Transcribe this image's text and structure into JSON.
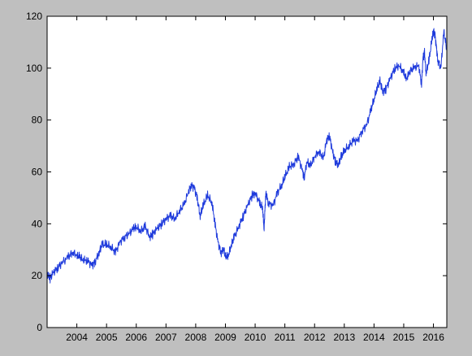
{
  "chart_data": {
    "type": "line",
    "title": "",
    "xlabel": "",
    "ylabel": "",
    "xlim": [
      2003.0,
      2016.45
    ],
    "ylim": [
      0,
      120
    ],
    "grid": false,
    "legend": "none",
    "y_ticks": [
      0,
      20,
      40,
      60,
      80,
      100,
      120
    ],
    "x_ticks": [
      2004,
      2005,
      2006,
      2007,
      2008,
      2009,
      2010,
      2011,
      2012,
      2013,
      2014,
      2015,
      2016
    ],
    "y_tick_labels": [
      "0",
      "20",
      "40",
      "60",
      "80",
      "100",
      "120"
    ],
    "x_tick_labels": [
      "2004",
      "2005",
      "2006",
      "2007",
      "2008",
      "2009",
      "2010",
      "2011",
      "2012",
      "2013",
      "2014",
      "2015",
      "2016"
    ],
    "series": [
      {
        "color": "#1f3bdc",
        "x": [
          2003.0,
          2003.1,
          2003.2,
          2003.35,
          2003.5,
          2003.7,
          2003.85,
          2004.0,
          2004.1,
          2004.2,
          2004.35,
          2004.5,
          2004.6,
          2004.75,
          2004.85,
          2005.0,
          2005.15,
          2005.3,
          2005.45,
          2005.6,
          2005.75,
          2005.9,
          2006.0,
          2006.15,
          2006.3,
          2006.45,
          2006.55,
          2006.7,
          2006.85,
          2007.0,
          2007.15,
          2007.3,
          2007.45,
          2007.6,
          2007.75,
          2007.85,
          2007.95,
          2008.05,
          2008.15,
          2008.25,
          2008.4,
          2008.55,
          2008.65,
          2008.75,
          2008.85,
          2008.95,
          2009.0,
          2009.1,
          2009.2,
          2009.3,
          2009.45,
          2009.6,
          2009.75,
          2009.9,
          2010.0,
          2010.15,
          2010.25,
          2010.3,
          2010.33,
          2010.36,
          2010.45,
          2010.6,
          2010.75,
          2010.9,
          2011.0,
          2011.15,
          2011.3,
          2011.45,
          2011.6,
          2011.65,
          2011.75,
          2011.85,
          2012.0,
          2012.15,
          2012.3,
          2012.4,
          2012.5,
          2012.6,
          2012.7,
          2012.8,
          2012.9,
          2013.0,
          2013.15,
          2013.3,
          2013.45,
          2013.6,
          2013.75,
          2013.9,
          2014.0,
          2014.1,
          2014.2,
          2014.3,
          2014.4,
          2014.55,
          2014.7,
          2014.85,
          2015.0,
          2015.1,
          2015.2,
          2015.35,
          2015.5,
          2015.6,
          2015.65,
          2015.7,
          2015.75,
          2015.85,
          2015.95,
          2016.0,
          2016.05,
          2016.1,
          2016.15,
          2016.25,
          2016.35,
          2016.45
        ],
        "y": [
          21,
          19,
          21,
          23,
          25,
          27,
          29,
          28,
          27,
          26,
          26,
          24,
          25,
          29,
          32,
          32,
          31,
          29,
          33,
          35,
          36,
          38,
          39,
          37,
          39,
          35,
          36,
          38,
          40,
          42,
          43,
          42,
          45,
          47,
          52,
          55,
          54,
          50,
          43,
          47,
          51,
          48,
          40,
          33,
          29,
          30,
          27,
          28,
          32,
          35,
          39,
          43,
          47,
          51,
          52,
          48,
          46,
          38,
          45,
          52,
          48,
          47,
          52,
          55,
          58,
          62,
          63,
          66,
          60,
          58,
          64,
          62,
          66,
          68,
          65,
          72,
          74,
          68,
          64,
          63,
          66,
          68,
          70,
          72,
          72,
          76,
          78,
          84,
          88,
          92,
          95,
          91,
          92,
          96,
          100,
          101,
          98,
          96,
          99,
          100,
          101,
          94,
          104,
          106,
          98,
          103,
          111,
          114,
          113,
          108,
          103,
          100,
          114,
          107
        ]
      }
    ]
  }
}
